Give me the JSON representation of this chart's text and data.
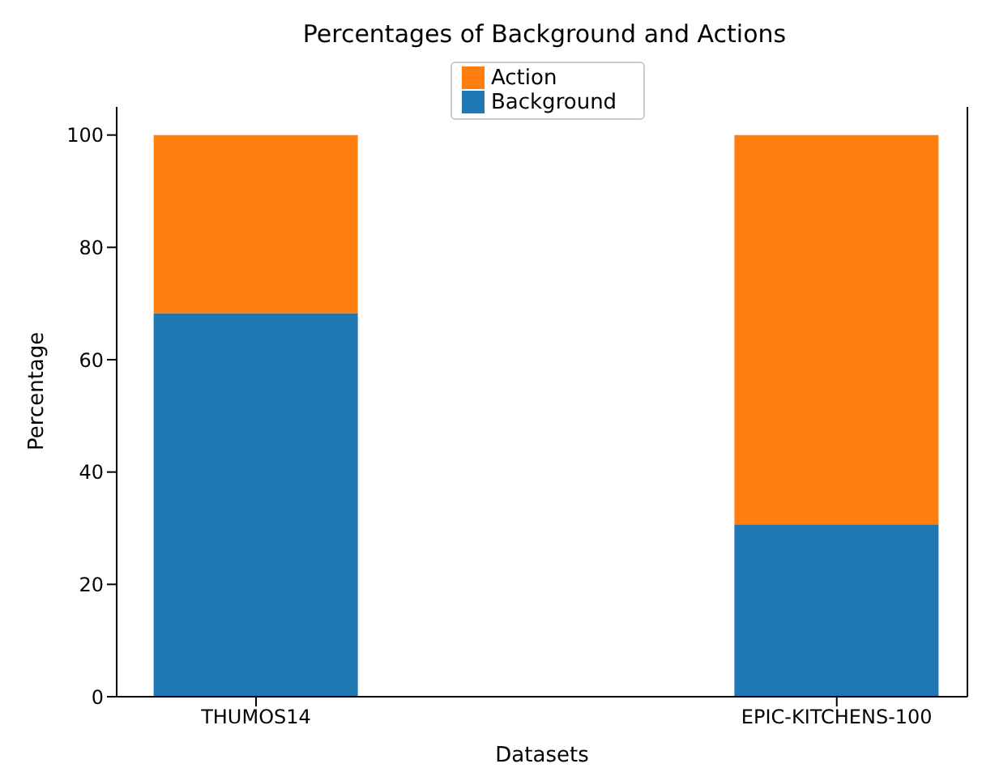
{
  "chart_data": {
    "type": "bar",
    "title": "Percentages of Background and Actions",
    "xlabel": "Datasets",
    "ylabel": "Percentage",
    "categories": [
      "THUMOS14",
      "EPIC-KITCHENS-100"
    ],
    "series": [
      {
        "name": "Background",
        "color": "#1f77b4",
        "values": [
          68.3,
          30.7
        ]
      },
      {
        "name": "Action",
        "color": "#ff7f0e",
        "values": [
          31.7,
          69.3
        ]
      }
    ],
    "stacked": true,
    "ylim": [
      0,
      105
    ],
    "yticks": [
      0,
      20,
      40,
      60,
      80,
      100
    ],
    "grid": false,
    "legend": "top"
  }
}
